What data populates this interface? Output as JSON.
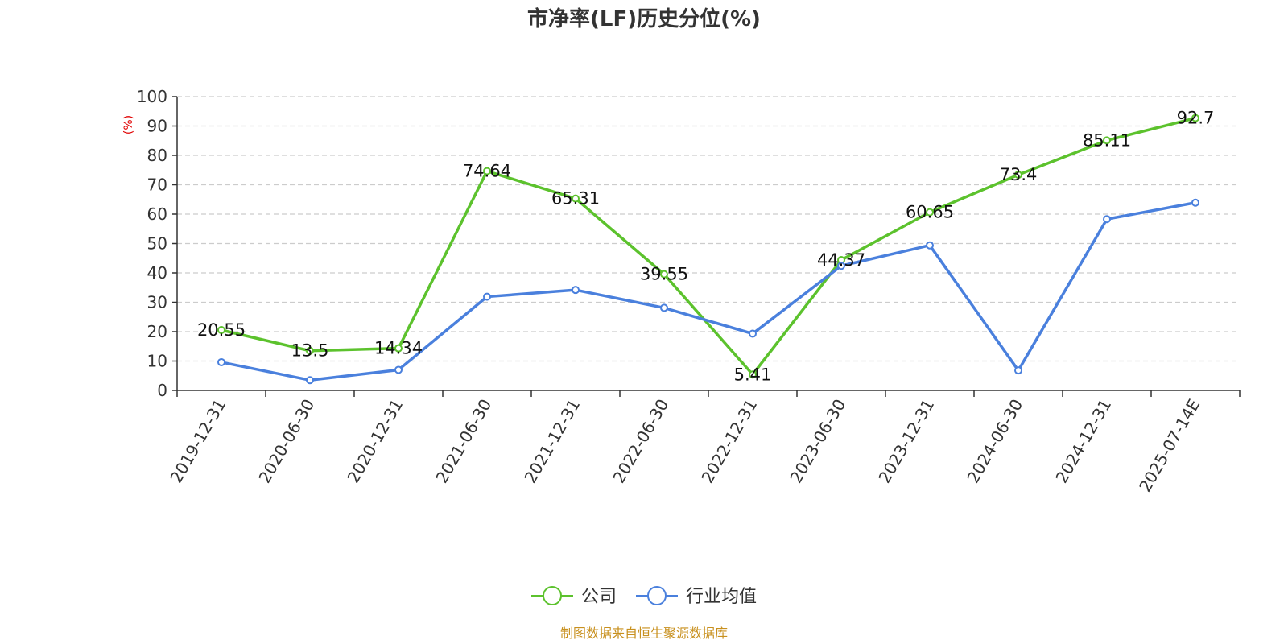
{
  "chart_data": {
    "type": "line",
    "title": "市净率(LF)历史分位(%)",
    "ylabel": "(%)",
    "ylim": [
      0,
      100
    ],
    "yticks": [
      0,
      10,
      20,
      30,
      40,
      50,
      60,
      70,
      80,
      90,
      100
    ],
    "categories": [
      "2019-12-31",
      "2020-06-30",
      "2020-12-31",
      "2021-06-30",
      "2021-12-31",
      "2022-06-30",
      "2022-12-31",
      "2023-06-30",
      "2023-12-31",
      "2024-06-30",
      "2024-12-31",
      "2025-07-14E"
    ],
    "series": [
      {
        "name": "公司",
        "color": "#5cc22d",
        "values": [
          20.55,
          13.5,
          14.34,
          74.64,
          65.31,
          39.55,
          5.41,
          44.37,
          60.65,
          73.4,
          85.11,
          92.7
        ],
        "labels": [
          "20.55",
          "13.5",
          "14.34",
          "74.64",
          "65.31",
          "39.55",
          "5.41",
          "44.37",
          "60.65",
          "73.4",
          "85.11",
          "92.7"
        ]
      },
      {
        "name": "行业均值",
        "color": "#4a80dd",
        "values": [
          9.6,
          3.5,
          7.0,
          31.9,
          34.2,
          28.1,
          19.3,
          42.4,
          49.4,
          6.8,
          58.3,
          63.9
        ]
      }
    ],
    "grid": true,
    "legend_position": "bottom-center"
  },
  "source_text": "制图数据来自恒生聚源数据库",
  "colors": {
    "title": "#333333",
    "ylabel": "#e00000",
    "source": "#c8901e",
    "grid": "#cccccc",
    "axis": "#333333"
  }
}
